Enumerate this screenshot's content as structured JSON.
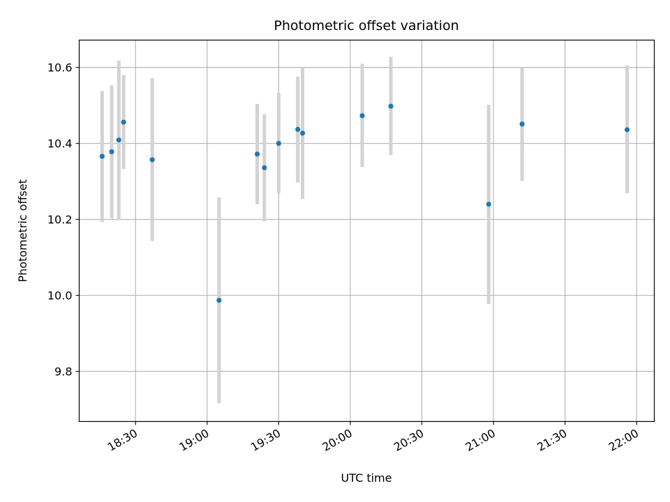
{
  "chart_data": {
    "type": "scatter",
    "title": "Photometric offset variation",
    "xlabel": "UTC time",
    "ylabel": "Photometric offset",
    "x_tick_labels": [
      "18:30",
      "19:00",
      "19:30",
      "20:00",
      "20:30",
      "21:00",
      "21:30",
      "22:00"
    ],
    "x_ticks_minutes": [
      1110,
      1140,
      1170,
      1200,
      1230,
      1260,
      1290,
      1320
    ],
    "y_ticks": [
      9.8,
      10.0,
      10.2,
      10.4,
      10.6
    ],
    "xlim_minutes": [
      1086.4,
      1327.4
    ],
    "ylim": [
      9.668,
      10.672
    ],
    "grid": true,
    "colors": {
      "points": "#1f77b4",
      "errorbars": "#d3d3d3",
      "grid": "#b0b0b0"
    },
    "points": [
      {
        "time": "18:16",
        "y": 10.366,
        "err_low": 10.193,
        "err_high": 10.538
      },
      {
        "time": "18:20",
        "y": 10.378,
        "err_low": 10.203,
        "err_high": 10.553
      },
      {
        "time": "18:23",
        "y": 10.409,
        "err_low": 10.198,
        "err_high": 10.618
      },
      {
        "time": "18:25",
        "y": 10.456,
        "err_low": 10.333,
        "err_high": 10.58
      },
      {
        "time": "18:37",
        "y": 10.357,
        "err_low": 10.143,
        "err_high": 10.572
      },
      {
        "time": "19:05",
        "y": 9.987,
        "err_low": 9.716,
        "err_high": 10.258
      },
      {
        "time": "19:21",
        "y": 10.372,
        "err_low": 10.24,
        "err_high": 10.504
      },
      {
        "time": "19:24",
        "y": 10.336,
        "err_low": 10.195,
        "err_high": 10.477
      },
      {
        "time": "19:30",
        "y": 10.4,
        "err_low": 10.268,
        "err_high": 10.533
      },
      {
        "time": "19:38",
        "y": 10.437,
        "err_low": 10.297,
        "err_high": 10.576
      },
      {
        "time": "19:40",
        "y": 10.427,
        "err_low": 10.254,
        "err_high": 10.6
      },
      {
        "time": "20:05",
        "y": 10.473,
        "err_low": 10.338,
        "err_high": 10.61
      },
      {
        "time": "20:17",
        "y": 10.498,
        "err_low": 10.369,
        "err_high": 10.628
      },
      {
        "time": "20:58",
        "y": 10.24,
        "err_low": 9.977,
        "err_high": 10.502
      },
      {
        "time": "21:12",
        "y": 10.451,
        "err_low": 10.301,
        "err_high": 10.6
      },
      {
        "time": "21:56",
        "y": 10.436,
        "err_low": 10.269,
        "err_high": 10.605
      }
    ]
  }
}
